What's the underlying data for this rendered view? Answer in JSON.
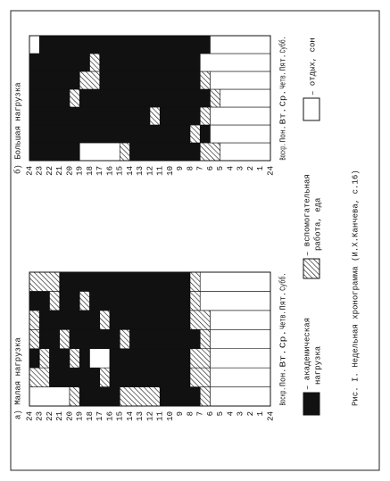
{
  "charts": [
    {
      "title": "а) Малая нагрузка",
      "hours": [
        "24",
        "23",
        "22",
        "21",
        "20",
        "19",
        "18",
        "17",
        "16",
        "15",
        "14",
        "13",
        "12",
        "11",
        "10",
        "9",
        "8",
        "7",
        "6",
        "5",
        "4",
        "3",
        "2",
        "1",
        "24"
      ],
      "days": [
        "Воскр.",
        "Пон.",
        "Вт.",
        "Ср.",
        "Четв.",
        "Пят.",
        "Субб."
      ]
    },
    {
      "title": "б) Большая нагрузка",
      "hours": [
        "24",
        "23",
        "22",
        "21",
        "20",
        "19",
        "18",
        "17",
        "16",
        "15",
        "14",
        "13",
        "12",
        "11",
        "10",
        "9",
        "8",
        "7",
        "6",
        "5",
        "4",
        "3",
        "2",
        "1",
        "24"
      ],
      "days": [
        "Воскр.",
        "Пон.",
        "Вт.",
        "Ср.",
        "Четв.",
        "Пят.",
        "Субб."
      ]
    }
  ],
  "legend": [
    {
      "lines": [
        "– академическая",
        "нагрузка"
      ]
    },
    {
      "lines": [
        "– вспомогательная",
        "работа, еда"
      ]
    },
    {
      "lines": [
        "– отдых, сон"
      ]
    }
  ],
  "caption": "Рис. I. Недельная хронограмма (И.Х.Канчева, с.16)"
}
